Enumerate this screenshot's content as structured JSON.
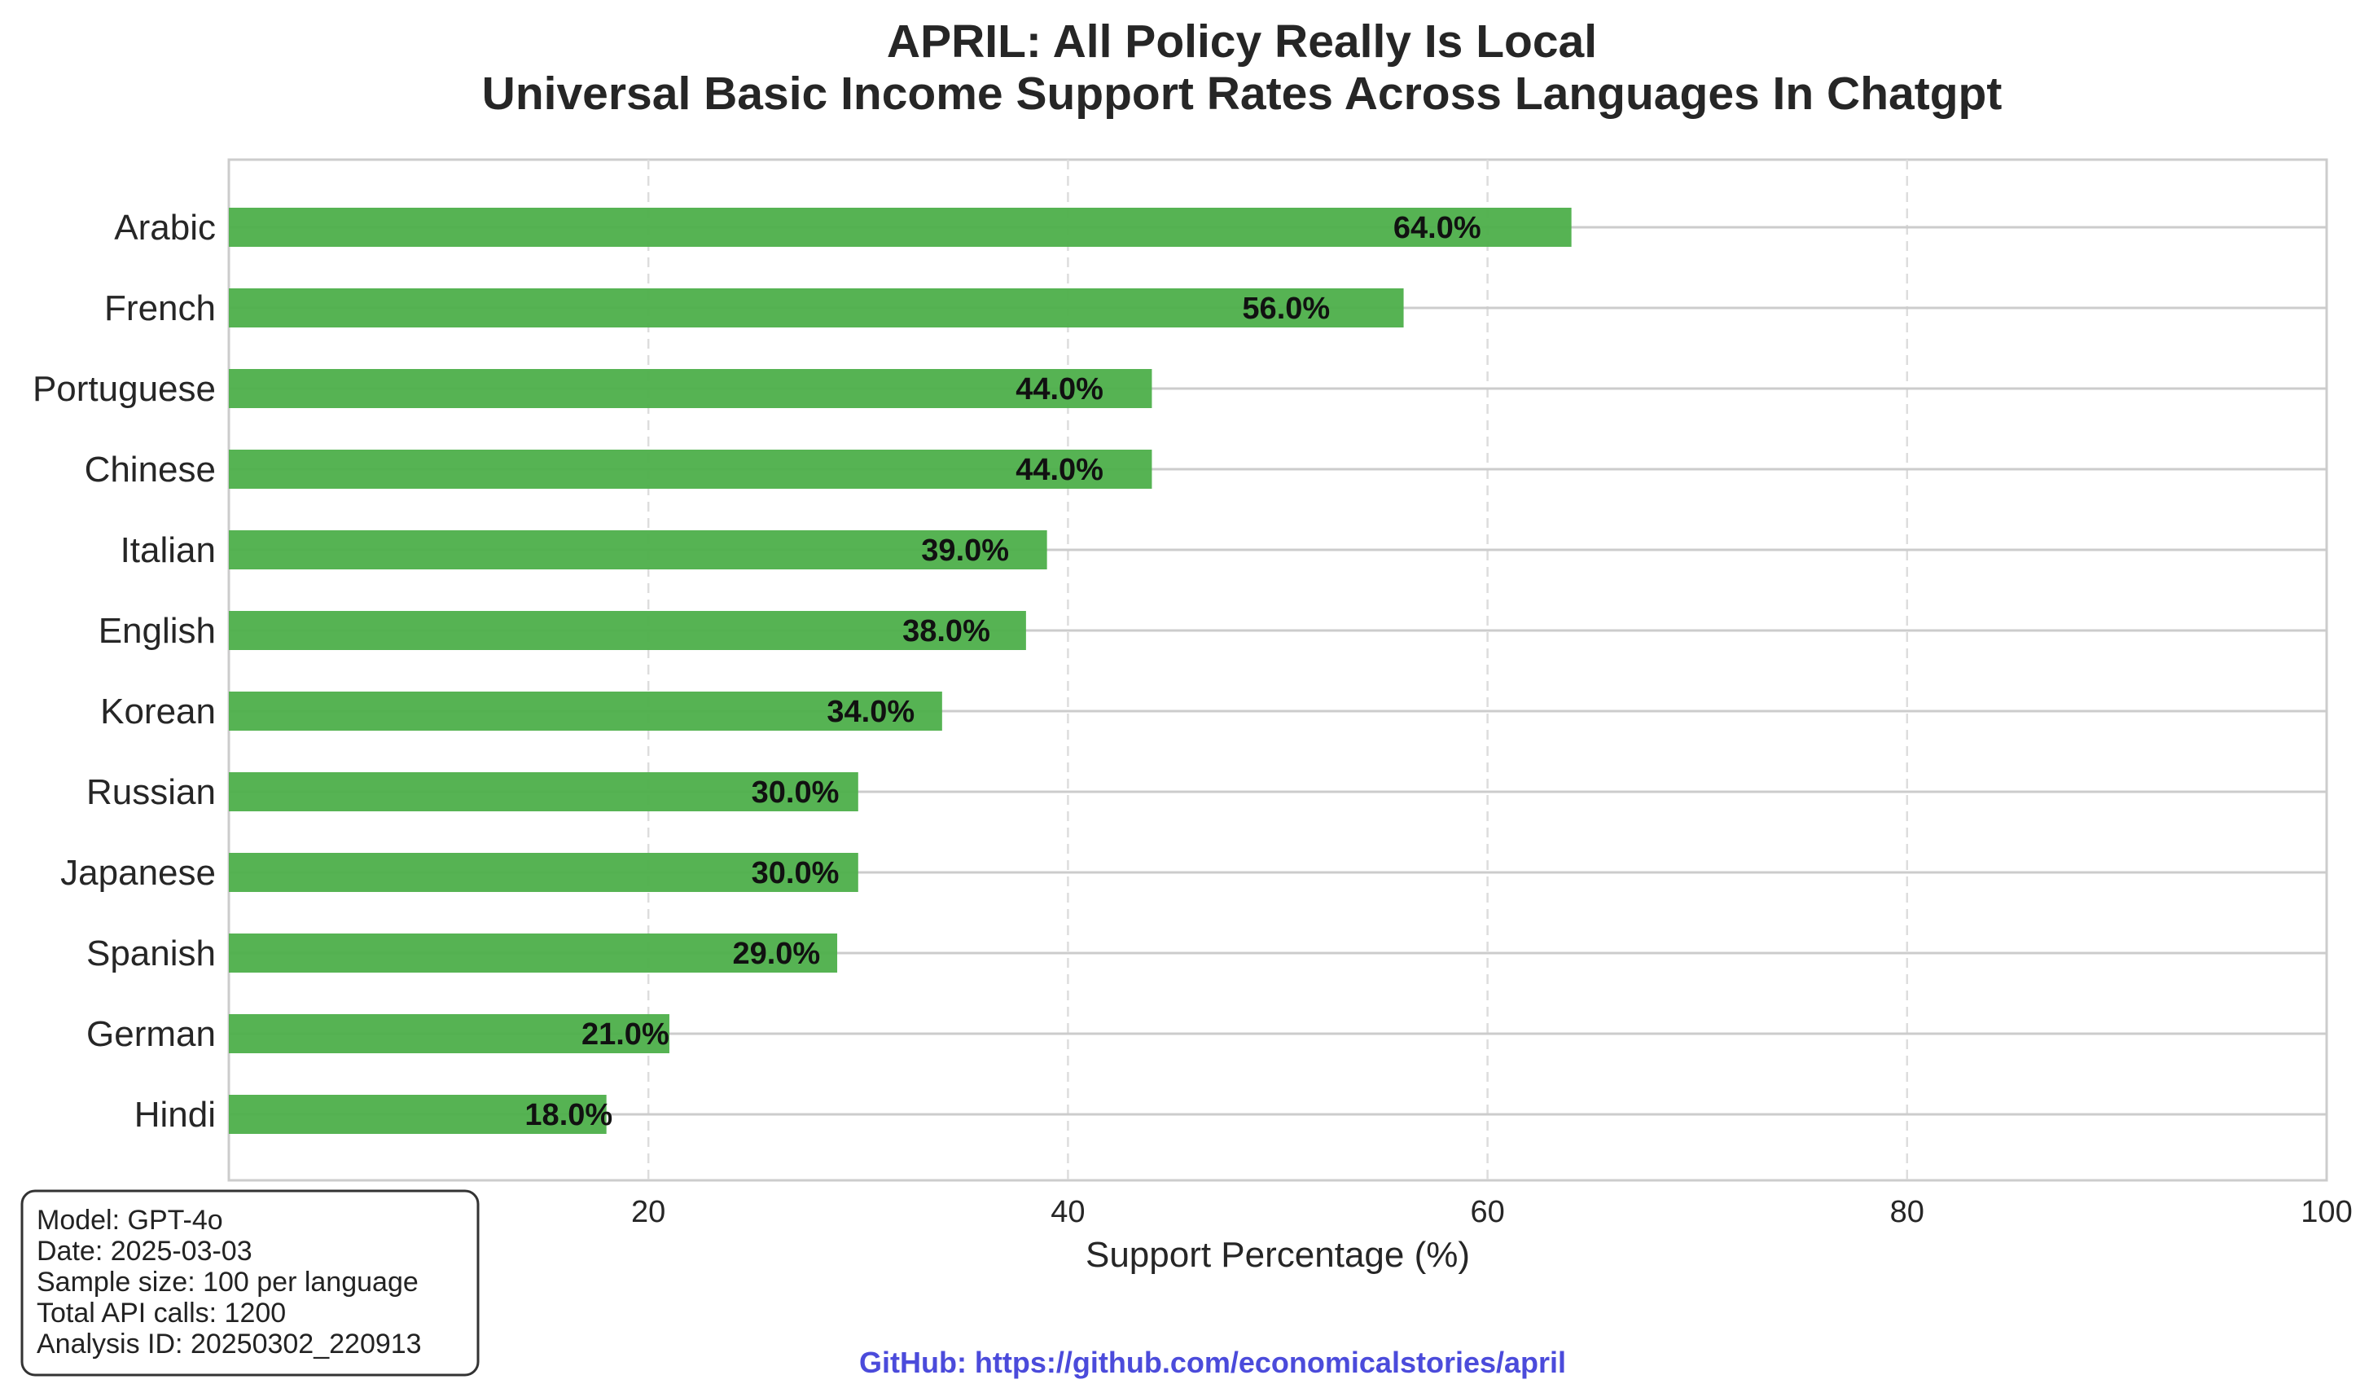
{
  "chart_data": {
    "type": "bar",
    "orientation": "horizontal",
    "title": "APRIL: All Policy Really Is Local",
    "subtitle": "Universal Basic Income Support Rates Across Languages In Chatgpt",
    "xlabel": "Support Percentage (%)",
    "ylabel": "",
    "xlim": [
      0,
      100
    ],
    "xticks": [
      0,
      20,
      40,
      60,
      80,
      100
    ],
    "grid": true,
    "categories": [
      "Arabic",
      "French",
      "Portuguese",
      "Chinese",
      "Italian",
      "English",
      "Korean",
      "Russian",
      "Japanese",
      "Spanish",
      "German",
      "Hindi"
    ],
    "values": [
      64.0,
      56.0,
      44.0,
      44.0,
      39.0,
      38.0,
      34.0,
      30.0,
      30.0,
      29.0,
      21.0,
      18.0
    ],
    "value_labels": [
      "64.0%",
      "56.0%",
      "44.0%",
      "44.0%",
      "39.0%",
      "38.0%",
      "34.0%",
      "30.0%",
      "30.0%",
      "29.0%",
      "21.0%",
      "18.0%"
    ],
    "bar_color": "#4daf4a",
    "info_box": [
      "Model: GPT-4o",
      "Date: 2025-03-03",
      "Sample size: 100 per language",
      "Total API calls: 1200",
      "Analysis ID: 20250302_220913"
    ],
    "footer": "GitHub: https://github.com/economicalstories/april",
    "footer_color": "#4b4bdb"
  }
}
